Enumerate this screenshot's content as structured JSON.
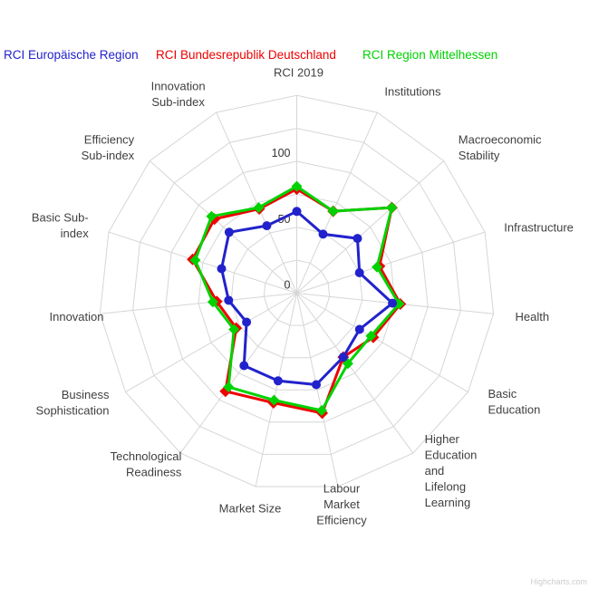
{
  "legend": {
    "items": [
      {
        "label": "RCI Europäische Region",
        "color": "#2222cc"
      },
      {
        "label": "RCI Bundesrepublik Deutschland",
        "color": "#ee0000"
      },
      {
        "label": "RCI Region Mittelhessen",
        "color": "#00d200"
      }
    ]
  },
  "credits": "Highcharts.com",
  "chart_data": {
    "type": "radar",
    "categories": [
      "RCI 2019",
      "Institutions",
      "Macroeconomic Stability",
      "Infrastructure",
      "Health",
      "Basic Education",
      "Higher Education and Lifelong Learning",
      "Labour Market Efficiency",
      "Market Size",
      "Technological Readiness",
      "Business Sophistication",
      "Innovation",
      "Basic Sub-index",
      "Efficiency Sub-index",
      "Innovation Sub-index"
    ],
    "category_lines": [
      [
        "RCI 2019"
      ],
      [
        "Institutions"
      ],
      [
        "Macroeconomic",
        "Stability"
      ],
      [
        "Infrastructure"
      ],
      [
        "Health"
      ],
      [
        "Basic",
        "Education"
      ],
      [
        "Higher",
        "Education",
        "and",
        "Lifelong",
        "Learning"
      ],
      [
        "Labour",
        "Market",
        "Efficiency"
      ],
      [
        "Market Size"
      ],
      [
        "Technological",
        "Readiness"
      ],
      [
        "Business",
        "Sophistication"
      ],
      [
        "Innovation"
      ],
      [
        "Basic Sub-",
        "index"
      ],
      [
        "Efficiency",
        "Sub-index"
      ],
      [
        "Innovation",
        "Sub-index"
      ]
    ],
    "series": [
      {
        "name": "RCI Europäische Region",
        "color": "#2222cc",
        "marker": "circle",
        "values": [
          62,
          49,
          62,
          50,
          73,
          55,
          60,
          71,
          68,
          68,
          44,
          52,
          60,
          69,
          56
        ]
      },
      {
        "name": "RCI Bundesrepublik Deutschland",
        "color": "#ee0000",
        "marker": "diamond",
        "values": [
          79,
          68,
          97,
          66,
          79,
          67,
          60,
          93,
          85,
          92,
          53,
          61,
          83,
          84,
          70
        ]
      },
      {
        "name": "RCI Region Mittelhessen",
        "color": "#00d200",
        "marker": "diamond",
        "values": [
          81,
          68,
          97,
          64,
          78,
          65,
          66,
          91,
          83,
          88,
          55,
          64,
          81,
          87,
          71
        ]
      }
    ],
    "axis": {
      "min": 0,
      "max": 150,
      "grid_step": 25,
      "tick_labels": [
        {
          "value": 0,
          "label": "0"
        },
        {
          "value": 50,
          "label": "50"
        },
        {
          "value": 100,
          "label": "100"
        }
      ]
    },
    "grid": true,
    "legend_position": "top"
  }
}
